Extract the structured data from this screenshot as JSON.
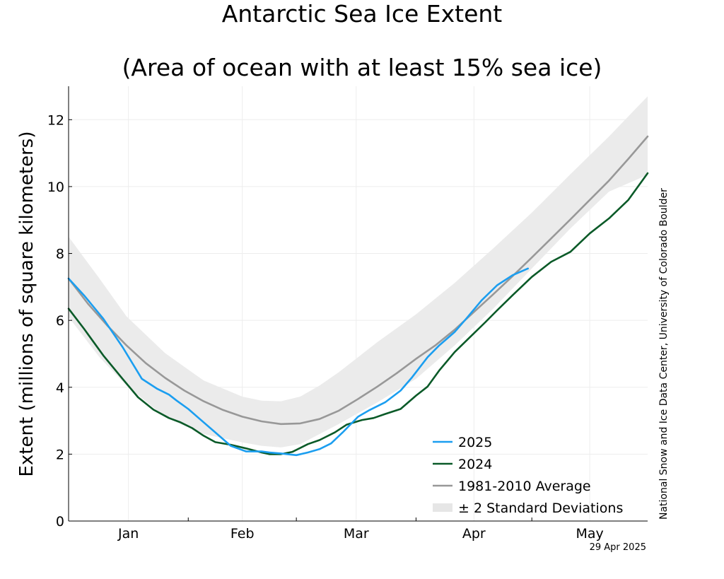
{
  "chart_data": {
    "type": "line",
    "title": "Antarctic Sea Ice Extent",
    "subtitle": "(Area of ocean with at least 15% sea ice)",
    "ylabel": "Extent (millions of square kilometers)",
    "xlabel": "",
    "ylim": [
      0,
      13
    ],
    "yticks": [
      0,
      2,
      4,
      6,
      8,
      10,
      12
    ],
    "xlim": [
      0,
      150
    ],
    "month_labels": [
      {
        "label": "Jan",
        "x": 15.5
      },
      {
        "label": "Feb",
        "x": 45
      },
      {
        "label": "Mar",
        "x": 74.5
      },
      {
        "label": "Apr",
        "x": 105
      },
      {
        "label": "May",
        "x": 135
      }
    ],
    "month_boundaries": [
      31,
      59,
      90,
      120
    ],
    "grid": true,
    "legend_position": "bottom-right",
    "band": {
      "name": "± 2 Standard Deviations",
      "color": "#ebebeb",
      "x": [
        0,
        8,
        15,
        25,
        35,
        45,
        50,
        55,
        60,
        65,
        70,
        80,
        90,
        100,
        110,
        120,
        130,
        140,
        150
      ],
      "upper": [
        8.5,
        7.25,
        6.12,
        5.02,
        4.2,
        3.72,
        3.6,
        3.58,
        3.72,
        4.05,
        4.45,
        5.35,
        6.18,
        7.12,
        8.15,
        9.22,
        10.37,
        11.5,
        12.7
      ],
      "lower": [
        6.1,
        4.9,
        4.05,
        3.1,
        2.6,
        2.35,
        2.25,
        2.2,
        2.3,
        2.6,
        2.9,
        3.55,
        4.25,
        5.25,
        6.35,
        7.55,
        8.75,
        9.85,
        10.35
      ]
    },
    "series": [
      {
        "name": "2025",
        "color": "#1b9ef0",
        "x": [
          0,
          4,
          9,
          14,
          19,
          23,
          26,
          28,
          31,
          34,
          38,
          42,
          46,
          50,
          52,
          55,
          59,
          62,
          65,
          68,
          71,
          75,
          78,
          82,
          86,
          89,
          93,
          96,
          100,
          103,
          107,
          111,
          115,
          119
        ],
        "y": [
          7.25,
          6.75,
          6.05,
          5.2,
          4.25,
          3.95,
          3.78,
          3.6,
          3.35,
          3.05,
          2.65,
          2.25,
          2.08,
          2.08,
          2.05,
          2.02,
          1.97,
          2.05,
          2.15,
          2.32,
          2.65,
          3.12,
          3.32,
          3.55,
          3.9,
          4.3,
          4.9,
          5.25,
          5.65,
          6.05,
          6.6,
          7.05,
          7.35,
          7.55
        ]
      },
      {
        "name": "2024",
        "color": "#0a5a28",
        "x": [
          0,
          4,
          9,
          14,
          18,
          22,
          26,
          29,
          32,
          35,
          38,
          42,
          46,
          50,
          52,
          55,
          58,
          62,
          65,
          69,
          72,
          76,
          79,
          82,
          86,
          90,
          93,
          96,
          100,
          104,
          108,
          111,
          115,
          120,
          125,
          130,
          135,
          140,
          145,
          150
        ],
        "y": [
          6.35,
          5.75,
          4.95,
          4.25,
          3.7,
          3.33,
          3.08,
          2.95,
          2.78,
          2.55,
          2.36,
          2.28,
          2.17,
          2.05,
          2.0,
          2.0,
          2.07,
          2.3,
          2.42,
          2.65,
          2.88,
          3.02,
          3.08,
          3.2,
          3.35,
          3.75,
          4.02,
          4.5,
          5.05,
          5.5,
          5.95,
          6.3,
          6.75,
          7.3,
          7.75,
          8.05,
          8.6,
          9.05,
          9.6,
          10.4
        ]
      },
      {
        "name": "1981-2010 Average",
        "color": "#989898",
        "x": [
          0,
          5,
          10,
          15,
          20,
          25,
          30,
          35,
          40,
          45,
          50,
          55,
          60,
          65,
          70,
          75,
          80,
          85,
          90,
          95,
          100,
          105,
          110,
          115,
          120,
          125,
          130,
          135,
          140,
          145,
          150
        ],
        "y": [
          7.25,
          6.5,
          5.85,
          5.25,
          4.72,
          4.28,
          3.9,
          3.58,
          3.32,
          3.12,
          2.98,
          2.9,
          2.92,
          3.05,
          3.3,
          3.65,
          4.02,
          4.42,
          4.85,
          5.25,
          5.72,
          6.25,
          6.78,
          7.32,
          7.88,
          8.45,
          9.02,
          9.6,
          10.18,
          10.83,
          11.5
        ]
      }
    ],
    "credit": "National Snow and Ice Data Center, University of Colorado Boulder",
    "date": "29 Apr 2025"
  }
}
